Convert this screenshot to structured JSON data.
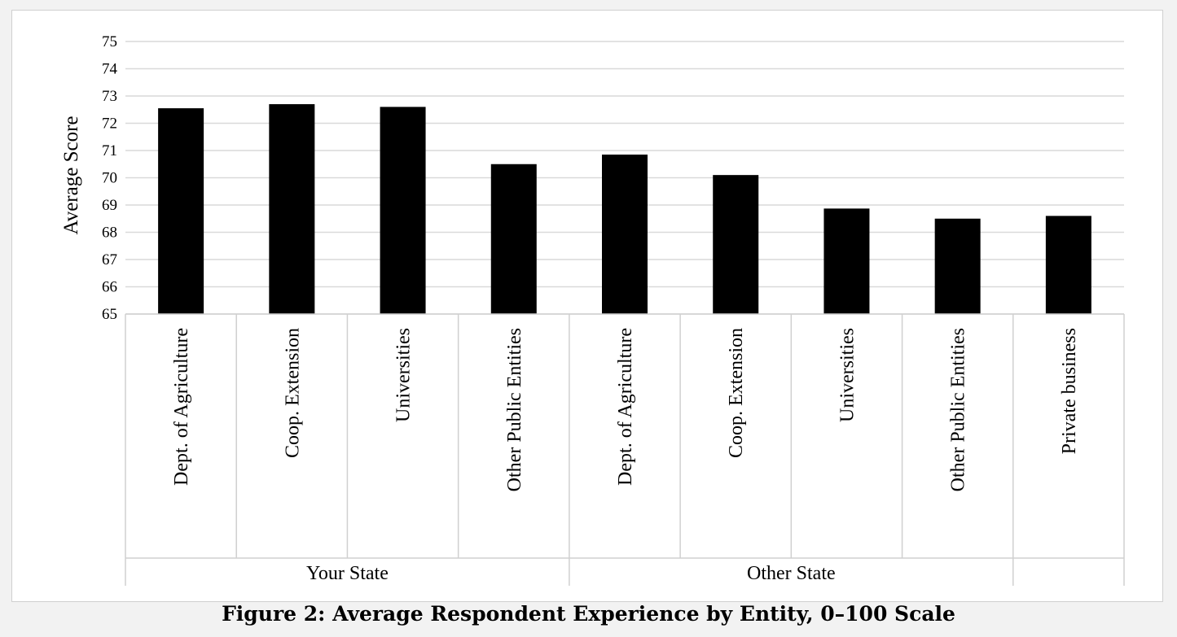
{
  "caption": "Figure 2: Average Respondent Experience by Entity, 0–100 Scale",
  "chart_data": {
    "type": "bar",
    "ylabel": "Average Score",
    "ylim": [
      65,
      75
    ],
    "yticks": [
      65,
      66,
      67,
      68,
      69,
      70,
      71,
      72,
      73,
      74,
      75
    ],
    "grid": true,
    "bar_color": "#000000",
    "grid_color": "#d9d9d9",
    "categories": [
      "Dept. of Agriculture",
      "Coop. Extension",
      "Universities",
      "Other Public Entities",
      "Dept. of Agriculture",
      "Coop. Extension",
      "Universities",
      "Other Public Entities",
      "Private business"
    ],
    "groups": [
      {
        "label": "Your State",
        "count": 4
      },
      {
        "label": "Other State",
        "count": 4
      },
      {
        "label": "",
        "count": 1
      }
    ],
    "values": [
      72.55,
      72.7,
      72.6,
      70.5,
      70.85,
      70.1,
      68.87,
      68.5,
      68.6
    ]
  }
}
